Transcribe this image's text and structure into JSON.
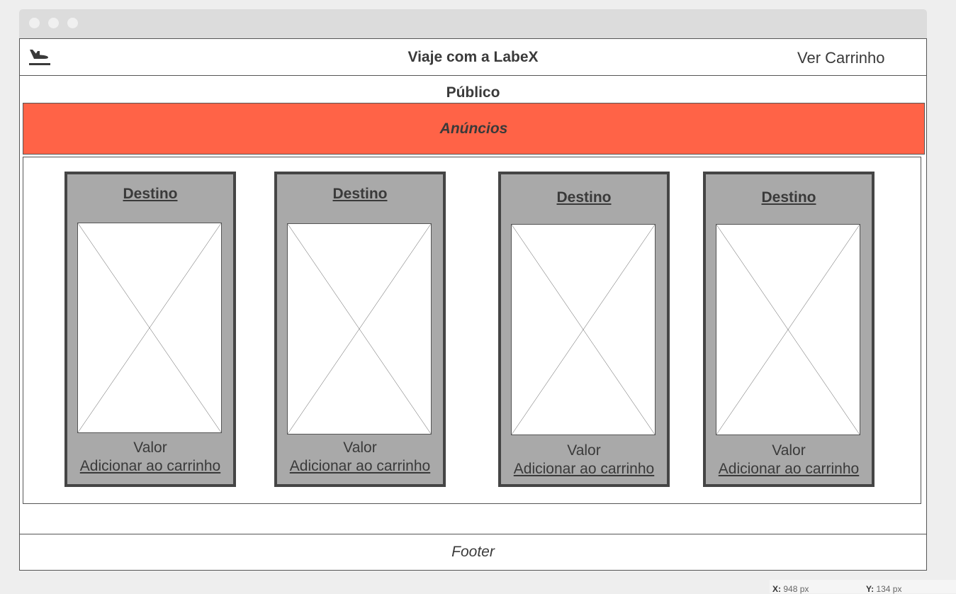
{
  "header": {
    "title": "Viaje com a LabeX",
    "cart_link": "Ver Carrinho",
    "logo_icon": "airplane-departure-icon"
  },
  "section": {
    "title": "Público"
  },
  "ads": {
    "label": "Anúncios",
    "color": "#ff6347"
  },
  "cards": [
    {
      "title": "Destino",
      "value_label": "Valor",
      "add_label": "Adicionar ao carrinho"
    },
    {
      "title": "Destino",
      "value_label": "Valor",
      "add_label": "Adicionar ao carrinho"
    },
    {
      "title": "Destino",
      "value_label": "Valor",
      "add_label": "Adicionar ao carrinho"
    },
    {
      "title": "Destino",
      "value_label": "Valor",
      "add_label": "Adicionar ao carrinho"
    }
  ],
  "footer": {
    "label": "Footer"
  },
  "coordinates": {
    "x_label": "X:",
    "x_value": "948 px",
    "y_label": "Y:",
    "y_value": "134 px"
  }
}
